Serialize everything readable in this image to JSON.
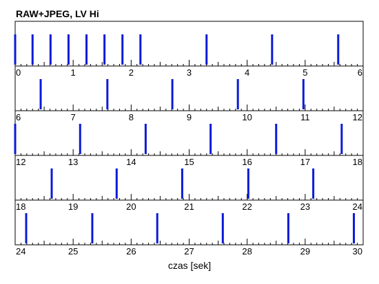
{
  "chart_data": {
    "type": "event-strip",
    "title": "RAW+JPEG, LV Hi",
    "xlabel": "czas [sek]",
    "ylabel": "",
    "bar_color": "#0a1ad6",
    "grid": false,
    "panels": [
      {
        "xlim": [
          0,
          6
        ],
        "tick_labels": [
          "0",
          "1",
          "2",
          "3",
          "4",
          "5",
          "6"
        ],
        "events": [
          0.0,
          0.3,
          0.61,
          0.92,
          1.23,
          1.54,
          1.85,
          2.16,
          3.3,
          4.43,
          5.57
        ]
      },
      {
        "xlim": [
          6,
          12
        ],
        "tick_labels": [
          "6",
          "7",
          "8",
          "9",
          "10",
          "11",
          "12"
        ],
        "events": [
          6.44,
          7.59,
          8.71,
          9.84,
          10.97
        ]
      },
      {
        "xlim": [
          12,
          18
        ],
        "tick_labels": [
          "12",
          "13",
          "14",
          "15",
          "16",
          "17",
          "18"
        ],
        "events": [
          12.0,
          13.12,
          14.25,
          15.37,
          16.5,
          17.63
        ]
      },
      {
        "xlim": [
          18,
          24
        ],
        "tick_labels": [
          "18",
          "19",
          "20",
          "21",
          "22",
          "23",
          "24"
        ],
        "events": [
          18.63,
          19.75,
          20.88,
          22.02,
          23.14
        ]
      },
      {
        "xlim": [
          24,
          30
        ],
        "tick_labels": [
          "24",
          "25",
          "26",
          "27",
          "28",
          "29",
          "30"
        ],
        "events": [
          24.19,
          25.33,
          26.45,
          27.58,
          28.71,
          29.84
        ]
      }
    ]
  }
}
